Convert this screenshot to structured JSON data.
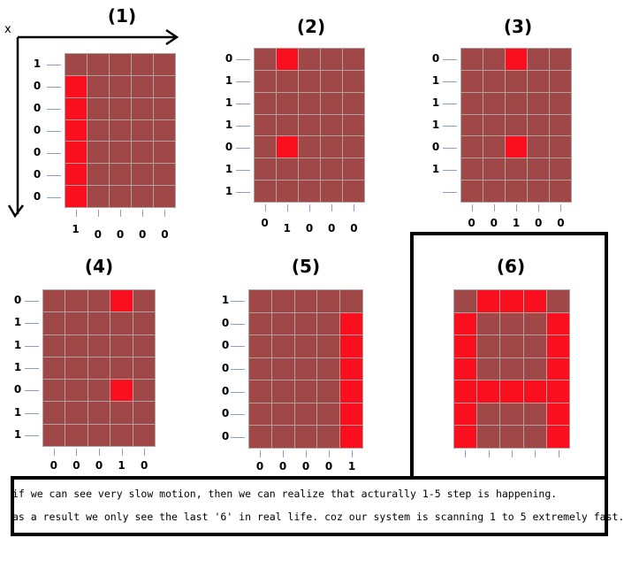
{
  "axis": {
    "x_label": "x"
  },
  "panels": [
    {
      "title": "(1)",
      "rows": [
        "1",
        "0",
        "0",
        "0",
        "0",
        "0",
        "0"
      ],
      "cols": [
        "1",
        "0",
        "0",
        "0",
        "0"
      ],
      "on": [
        [
          1,
          0
        ],
        [
          2,
          0
        ],
        [
          3,
          0
        ],
        [
          4,
          0
        ],
        [
          5,
          0
        ],
        [
          6,
          0
        ]
      ]
    },
    {
      "title": "(2)",
      "rows": [
        "0",
        "1",
        "1",
        "1",
        "0",
        "1",
        "1"
      ],
      "cols": [
        "0",
        "1",
        "0",
        "0",
        "0"
      ],
      "on": [
        [
          0,
          1
        ],
        [
          4,
          1
        ]
      ]
    },
    {
      "title": "(3)",
      "rows": [
        "0",
        "1",
        "1",
        "1",
        "0",
        "1",
        ""
      ],
      "cols": [
        "0",
        "0",
        "1",
        "0",
        "0"
      ],
      "on": [
        [
          0,
          2
        ],
        [
          4,
          2
        ]
      ]
    },
    {
      "title": "(4)",
      "rows": [
        "0",
        "1",
        "1",
        "1",
        "0",
        "1",
        "1"
      ],
      "cols": [
        "0",
        "0",
        "0",
        "1",
        "0"
      ],
      "on": [
        [
          0,
          3
        ],
        [
          4,
          3
        ]
      ]
    },
    {
      "title": "(5)",
      "rows": [
        "1",
        "0",
        "0",
        "0",
        "0",
        "0",
        "0"
      ],
      "cols": [
        "0",
        "0",
        "0",
        "0",
        "1"
      ],
      "on": [
        [
          1,
          4
        ],
        [
          2,
          4
        ],
        [
          3,
          4
        ],
        [
          4,
          4
        ],
        [
          5,
          4
        ],
        [
          6,
          4
        ]
      ]
    },
    {
      "title": "(6)",
      "rows": [],
      "cols": [
        "",
        "",
        "",
        "",
        ""
      ],
      "on": [
        [
          0,
          1
        ],
        [
          0,
          2
        ],
        [
          0,
          3
        ],
        [
          1,
          0
        ],
        [
          2,
          0
        ],
        [
          3,
          0
        ],
        [
          4,
          0
        ],
        [
          5,
          0
        ],
        [
          6,
          0
        ],
        [
          1,
          4
        ],
        [
          2,
          4
        ],
        [
          3,
          4
        ],
        [
          4,
          4
        ],
        [
          5,
          4
        ],
        [
          6,
          4
        ],
        [
          4,
          1
        ],
        [
          4,
          2
        ],
        [
          4,
          3
        ]
      ]
    }
  ],
  "caption": {
    "line1": "if we can see very slow motion, then we can realize that acturally 1-5 step is happening.",
    "line2": "as a result we only see the last '6' in real life. coz our system is scanning 1 to 5 extremely fast."
  },
  "colors": {
    "cell_off": "#a04848",
    "cell_on": "#fa0f1e"
  }
}
